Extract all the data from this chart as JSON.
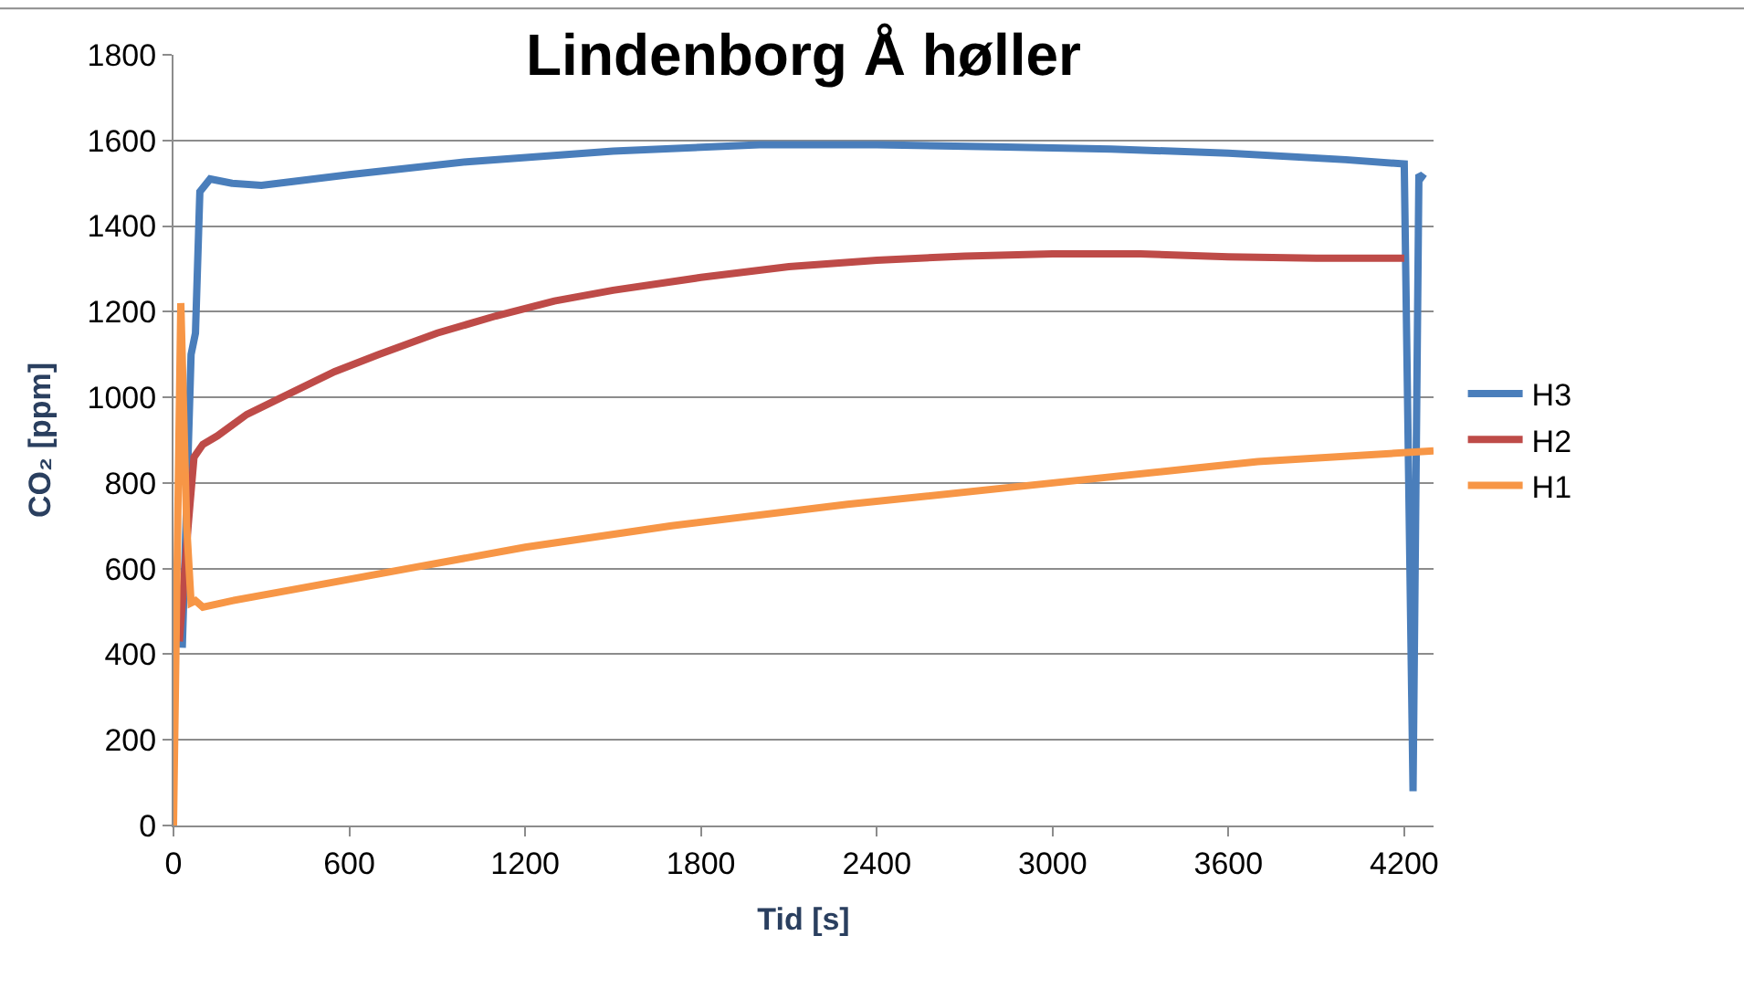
{
  "chart_data": {
    "type": "line",
    "title": "Lindenborg Å høller",
    "xlabel": "Tid [s]",
    "ylabel": "CO₂ [ppm]",
    "xlim": [
      0,
      4300
    ],
    "xticks": [
      0,
      600,
      1200,
      1800,
      2400,
      3000,
      3600,
      4200
    ],
    "ylim": [
      0,
      1800
    ],
    "yticks": [
      0,
      200,
      400,
      600,
      800,
      1000,
      1200,
      1400,
      1600,
      1800
    ],
    "grid": "y",
    "legend": "right",
    "marker": "none",
    "line_style": "solid",
    "series": [
      {
        "name": "H3",
        "color": "#4a7ebb",
        "x": [
          30,
          60,
          75,
          90,
          125,
          200,
          300,
          600,
          1000,
          1500,
          2000,
          2400,
          2800,
          3200,
          3600,
          4000,
          4200,
          4230,
          4250,
          4270
        ],
        "values": [
          415,
          1100,
          1150,
          1480,
          1510,
          1500,
          1495,
          1520,
          1550,
          1575,
          1590,
          1590,
          1585,
          1580,
          1570,
          1555,
          1545,
          80,
          1520,
          1510
        ]
      },
      {
        "name": "H2",
        "color": "#be4b48",
        "x": [
          20,
          50,
          70,
          100,
          150,
          250,
          400,
          550,
          700,
          900,
          1100,
          1300,
          1500,
          1800,
          2100,
          2400,
          2700,
          3000,
          3300,
          3600,
          3900,
          4200
        ],
        "values": [
          430,
          700,
          860,
          890,
          910,
          960,
          1010,
          1060,
          1100,
          1150,
          1190,
          1225,
          1250,
          1280,
          1305,
          1320,
          1330,
          1335,
          1335,
          1328,
          1325,
          1325
        ]
      },
      {
        "name": "H1",
        "color": "#f79646",
        "x": [
          0,
          25,
          45,
          60,
          75,
          100,
          200,
          400,
          800,
          1200,
          1700,
          2300,
          3000,
          3700,
          4300
        ],
        "values": [
          0,
          1220,
          700,
          520,
          525,
          510,
          525,
          550,
          600,
          650,
          700,
          750,
          800,
          850,
          875
        ]
      }
    ]
  }
}
